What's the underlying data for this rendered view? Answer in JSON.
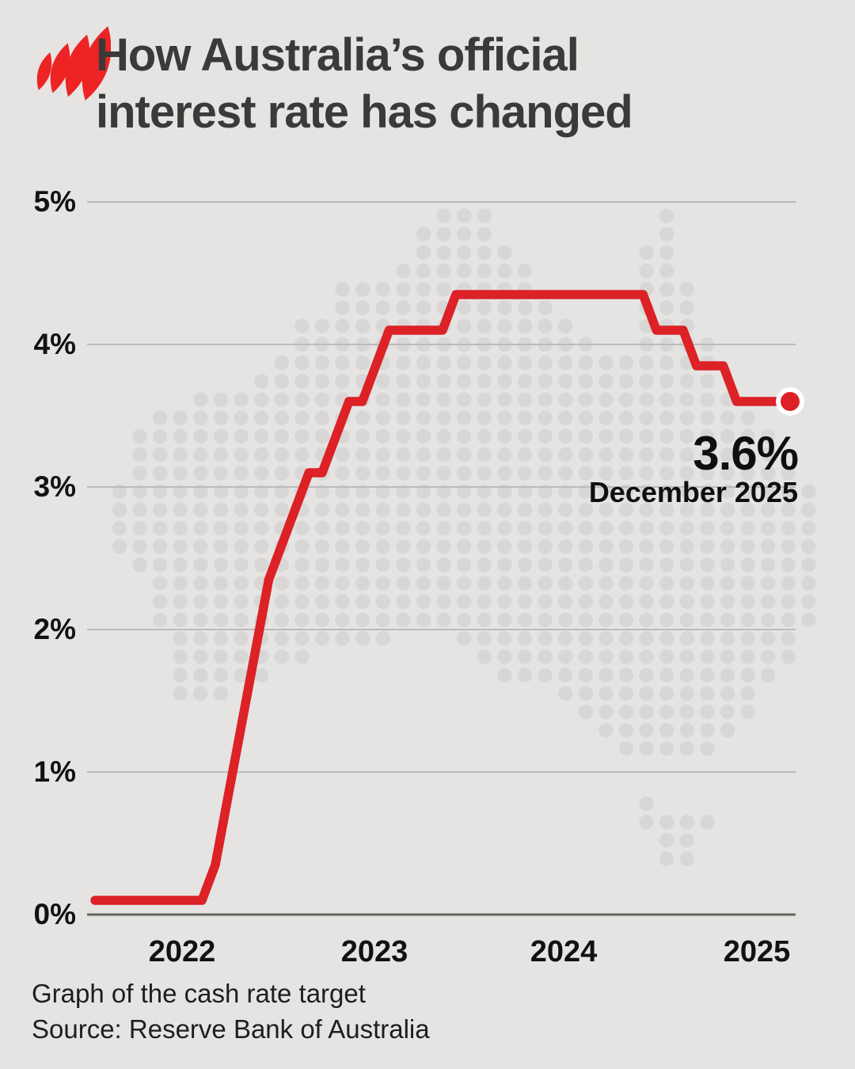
{
  "header": {
    "logo": "sbs-logo",
    "title_line1": "How Australia’s official",
    "title_line2": "interest rate has changed"
  },
  "annotation": {
    "value": "3.6%",
    "date": "December 2025"
  },
  "footer": {
    "caption": "Graph of the cash rate target",
    "source": "Source: Reserve Bank of Australia"
  },
  "colors": {
    "background": "#e5e4e2",
    "map_dot": "#d8d7d5",
    "line": "#dc2127",
    "logo_red": "#ee2424",
    "endpoint_ring": "#ffffff",
    "title_text": "#3b3a39",
    "axis_text": "#121212",
    "gridline": "#bcbbb9",
    "zero_axis": "#64635f"
  },
  "chart_data": {
    "type": "line",
    "title": "How Australia's official interest rate has changed",
    "subtitle": "Graph of the cash rate target",
    "source": "Source: Reserve Bank of Australia",
    "unit": "percent",
    "ylim": [
      0,
      5
    ],
    "grid": true,
    "y_ticks": [
      "5%",
      "4%",
      "3%",
      "2%",
      "1%",
      "0%"
    ],
    "x_ticks": [
      "2022",
      "2023",
      "2024",
      "2025"
    ],
    "series": [
      {
        "name": "Cash rate target",
        "months": [
          "2021-08",
          "2021-09",
          "2021-10",
          "2021-11",
          "2021-12",
          "2022-01",
          "2022-02",
          "2022-03",
          "2022-04",
          "2022-05",
          "2022-06",
          "2022-07",
          "2022-08",
          "2022-09",
          "2022-10",
          "2022-11",
          "2022-12",
          "2023-01",
          "2023-02",
          "2023-03",
          "2023-04",
          "2023-05",
          "2023-06",
          "2023-07",
          "2023-08",
          "2023-09",
          "2023-10",
          "2023-11",
          "2023-12",
          "2024-01",
          "2024-02",
          "2024-03",
          "2024-04",
          "2024-05",
          "2024-06",
          "2024-07",
          "2024-08",
          "2024-09",
          "2024-10",
          "2024-11",
          "2024-12",
          "2025-01",
          "2025-02",
          "2025-03",
          "2025-04",
          "2025-05",
          "2025-06",
          "2025-07",
          "2025-08",
          "2025-09",
          "2025-10",
          "2025-11",
          "2025-12"
        ],
        "values": [
          0.1,
          0.1,
          0.1,
          0.1,
          0.1,
          0.1,
          0.1,
          0.1,
          0.1,
          0.35,
          0.85,
          1.35,
          1.85,
          2.35,
          2.6,
          2.85,
          3.1,
          3.1,
          3.35,
          3.6,
          3.6,
          3.85,
          4.1,
          4.1,
          4.1,
          4.1,
          4.1,
          4.35,
          4.35,
          4.35,
          4.35,
          4.35,
          4.35,
          4.35,
          4.35,
          4.35,
          4.35,
          4.35,
          4.35,
          4.35,
          4.35,
          4.35,
          4.1,
          4.1,
          4.1,
          3.85,
          3.85,
          3.85,
          3.6,
          3.6,
          3.6,
          3.6,
          3.6
        ]
      }
    ],
    "end_point": {
      "month": "2025-12",
      "value": 3.6,
      "label": "3.6%",
      "sublabel": "December 2025"
    },
    "legend": "none"
  }
}
